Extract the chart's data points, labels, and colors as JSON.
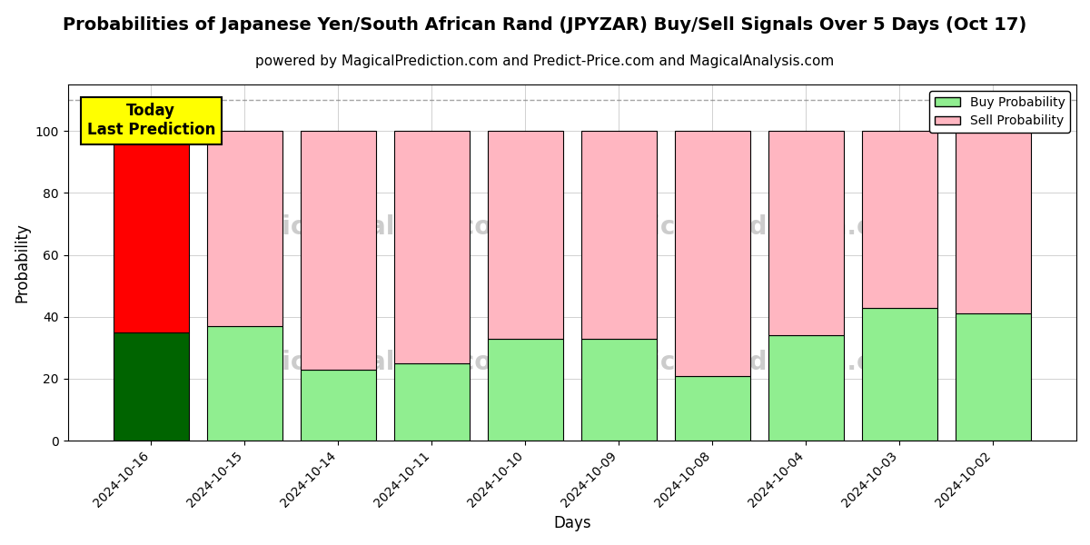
{
  "title": "Probabilities of Japanese Yen/South African Rand (JPYZAR) Buy/Sell Signals Over 5 Days (Oct 17)",
  "subtitle": "powered by MagicalPrediction.com and Predict-Price.com and MagicalAnalysis.com",
  "xlabel": "Days",
  "ylabel": "Probability",
  "dates": [
    "2024-10-16",
    "2024-10-15",
    "2024-10-14",
    "2024-10-11",
    "2024-10-10",
    "2024-10-09",
    "2024-10-08",
    "2024-10-04",
    "2024-10-03",
    "2024-10-02"
  ],
  "buy_values": [
    35,
    37,
    23,
    25,
    33,
    33,
    21,
    34,
    43,
    41
  ],
  "sell_values": [
    65,
    63,
    77,
    75,
    67,
    67,
    79,
    66,
    57,
    59
  ],
  "buy_color_today": "#006400",
  "sell_color_today": "#ff0000",
  "buy_color_normal": "#90EE90",
  "sell_color_normal": "#FFB6C1",
  "bar_edge_color": "black",
  "bar_edge_width": 0.8,
  "annotation_text": "Today\nLast Prediction",
  "annotation_facecolor": "yellow",
  "annotation_edgecolor": "black",
  "dashed_line_y": 110,
  "ylim": [
    0,
    115
  ],
  "yticks": [
    0,
    20,
    40,
    60,
    80,
    100
  ],
  "grid_color": "gray",
  "grid_alpha": 0.5,
  "grid_linestyle": "-",
  "watermark_color": "#cccccc",
  "background_color": "white",
  "legend_buy_label": "Buy Probability",
  "legend_sell_label": "Sell Probability"
}
